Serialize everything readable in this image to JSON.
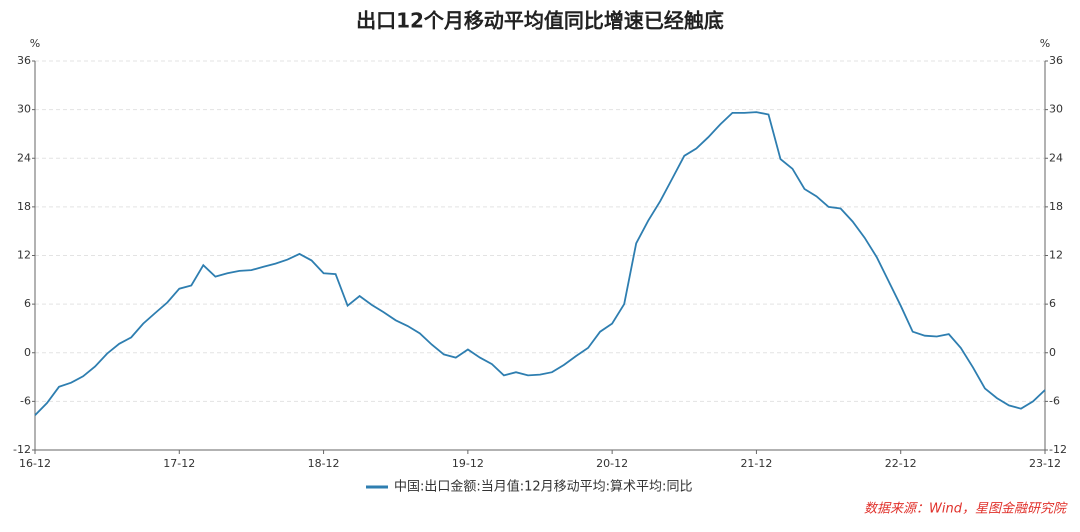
{
  "chart_data": {
    "type": "line",
    "title": "出口12个月移动平均值同比增速已经触底",
    "y_unit": "%",
    "source": "数据来源：Wind，星图金融研究院",
    "categories": [
      "16-12",
      null,
      null,
      null,
      null,
      null,
      null,
      null,
      null,
      null,
      null,
      null,
      "17-12",
      null,
      null,
      null,
      null,
      null,
      null,
      null,
      null,
      null,
      null,
      null,
      "18-12",
      null,
      null,
      null,
      null,
      null,
      null,
      null,
      null,
      null,
      null,
      null,
      "19-12",
      null,
      null,
      null,
      null,
      null,
      null,
      null,
      null,
      null,
      null,
      null,
      "20-12",
      null,
      null,
      null,
      null,
      null,
      null,
      null,
      null,
      null,
      null,
      null,
      "21-12",
      null,
      null,
      null,
      null,
      null,
      null,
      null,
      null,
      null,
      null,
      null,
      "22-12",
      null,
      null,
      null,
      null,
      null,
      null,
      null,
      null,
      null,
      null,
      null,
      "23-12"
    ],
    "series": [
      {
        "name": "中国:出口金额:当月值:12月移动平均:算术平均:同比",
        "color": "#2e7eb0",
        "values": [
          -7.7,
          -6.2,
          -4.2,
          -3.7,
          -2.9,
          -1.7,
          -0.1,
          1.1,
          1.9,
          3.6,
          4.9,
          6.2,
          7.9,
          8.3,
          10.8,
          9.4,
          9.8,
          10.1,
          10.2,
          10.6,
          11.0,
          11.5,
          12.2,
          11.4,
          9.8,
          9.7,
          5.8,
          7.0,
          5.9,
          5.0,
          4.0,
          3.3,
          2.4,
          1.0,
          -0.2,
          -0.6,
          0.4,
          -0.6,
          -1.4,
          -2.8,
          -2.4,
          -2.8,
          -2.7,
          -2.4,
          -1.5,
          -0.4,
          0.6,
          2.6,
          3.6,
          6.0,
          13.5,
          16.3,
          18.7,
          21.5,
          24.3,
          25.2,
          26.6,
          28.2,
          29.6,
          29.6,
          29.7,
          29.4,
          23.9,
          22.7,
          20.2,
          19.3,
          18.0,
          17.8,
          16.2,
          14.2,
          11.8,
          8.8,
          5.8,
          2.6,
          2.1,
          2.0,
          2.3,
          0.6,
          -1.8,
          -4.4,
          -5.6,
          -6.5,
          -6.9,
          -6.0,
          -4.6
        ]
      }
    ],
    "ylim": [
      -12,
      36
    ],
    "yticks": [
      -12,
      -6,
      0,
      6,
      12,
      18,
      24,
      30,
      36
    ],
    "grid": true,
    "legend": "bottom"
  }
}
